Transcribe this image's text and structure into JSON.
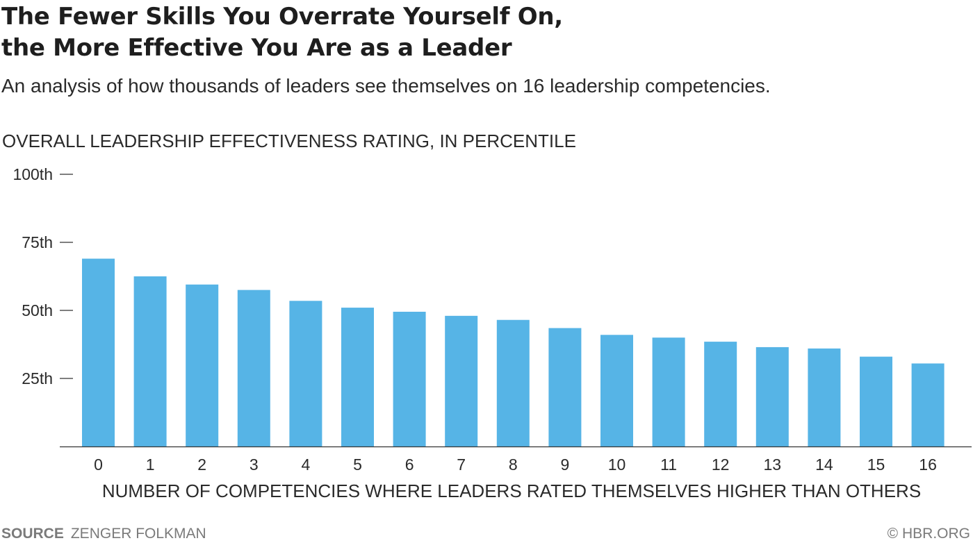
{
  "chart_data": {
    "type": "bar",
    "title": "The Fewer Skills You Overrate Yourself On, the More Effective You Are as a Leader",
    "title_lines": [
      "The Fewer Skills You Overrate Yourself On,",
      "the More Effective You Are as a Leader"
    ],
    "subtitle": "An analysis of how thousands of leaders see themselves on 16 leadership competencies.",
    "ylabel": "OVERALL LEADERSHIP EFFECTIVENESS RATING, IN PERCENTILE",
    "xlabel": "NUMBER OF COMPETENCIES WHERE LEADERS RATED THEMSELVES HIGHER THAN OTHERS",
    "categories": [
      "0",
      "1",
      "2",
      "3",
      "4",
      "5",
      "6",
      "7",
      "8",
      "9",
      "10",
      "11",
      "12",
      "13",
      "14",
      "15",
      "16"
    ],
    "values": [
      69,
      62.5,
      59.5,
      57.5,
      53.5,
      51,
      49.5,
      48,
      46.5,
      43.5,
      41,
      40,
      38.5,
      36.5,
      36,
      33,
      30.5
    ],
    "ylim": [
      0,
      100
    ],
    "yticks": [
      {
        "value": 100,
        "label": "100th"
      },
      {
        "value": 75,
        "label": "75th"
      },
      {
        "value": 50,
        "label": "50th"
      },
      {
        "value": 25,
        "label": "25th"
      }
    ],
    "bar_color": "#56b4e6",
    "grid": false
  },
  "footer": {
    "source_label": "SOURCE",
    "source_value": "ZENGER FOLKMAN",
    "credit": "© HBR.ORG"
  }
}
